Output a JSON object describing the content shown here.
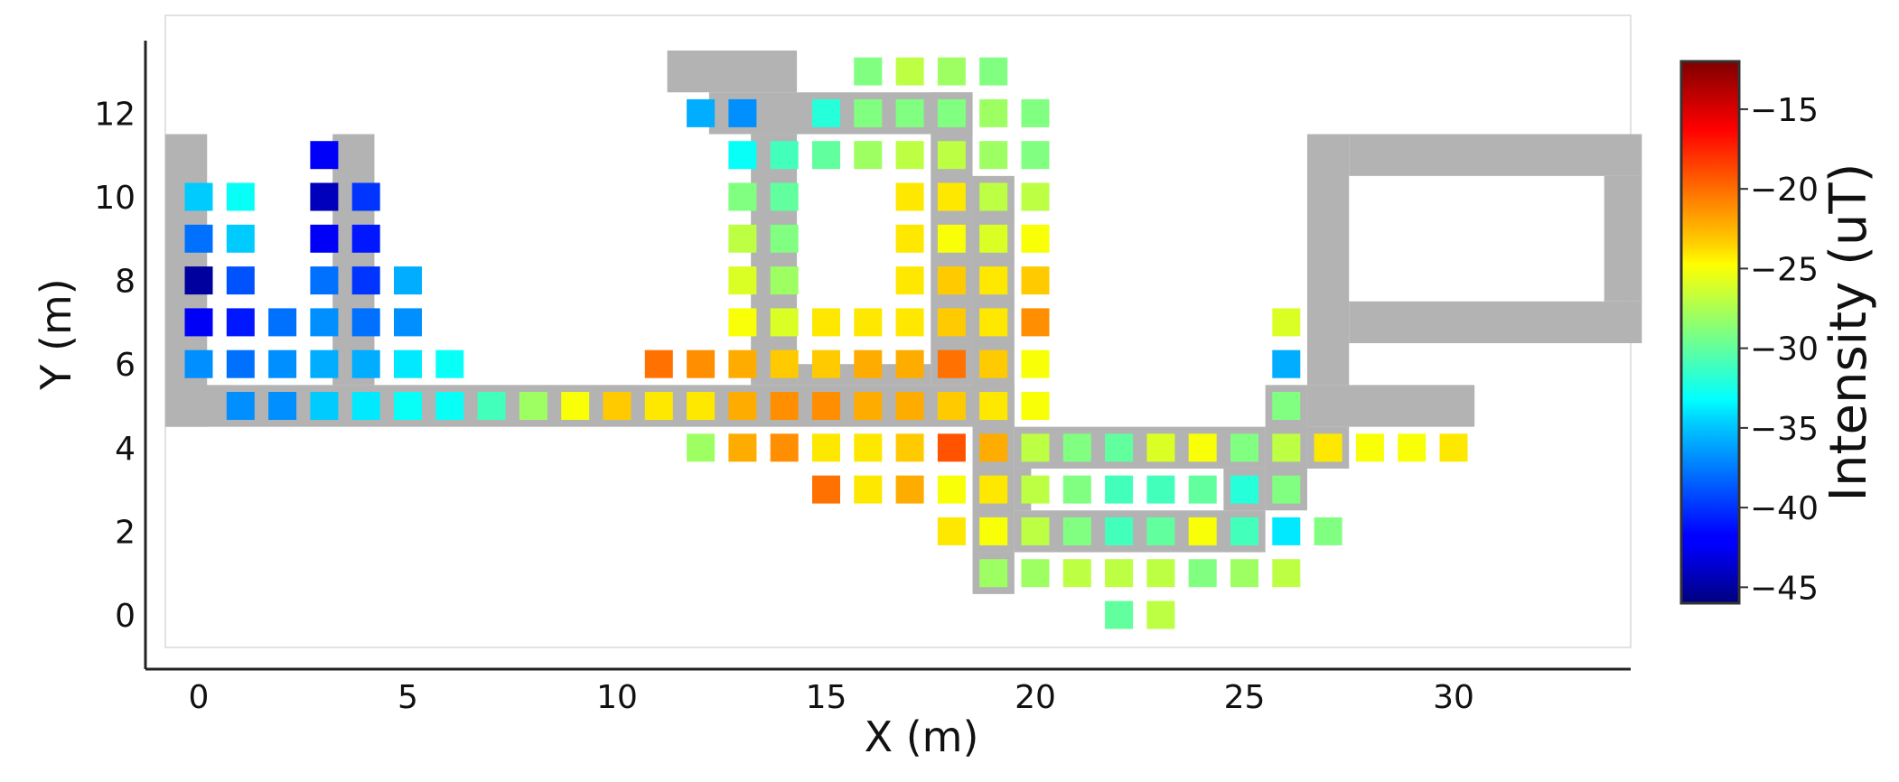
{
  "chart_data": {
    "type": "heatmap",
    "xlabel": "X (m)",
    "ylabel": "Y (m)",
    "xlim": [
      -1.3,
      34.5
    ],
    "ylim": [
      -1.3,
      14.5
    ],
    "xticks": [
      0,
      5,
      10,
      15,
      20,
      25,
      30
    ],
    "yticks": [
      0,
      2,
      4,
      6,
      8,
      10,
      12
    ],
    "grid": false,
    "colorbar": {
      "label": "Intensity (uT)",
      "colormap": "jet",
      "range": [
        -46,
        -12
      ],
      "ticks": [
        -45,
        -40,
        -35,
        -30,
        -25,
        -20,
        -15
      ]
    },
    "walls_color": "#b3b3b3",
    "walls": [
      [
        -0.8,
        4.5,
        19.5,
        5.5
      ],
      [
        -0.8,
        4.5,
        0.2,
        11.5
      ],
      [
        3.2,
        5.5,
        4.2,
        11.5
      ],
      [
        11.2,
        12.5,
        14.3,
        13.5
      ],
      [
        12.2,
        11.5,
        18.5,
        12.5
      ],
      [
        13.2,
        5.5,
        14.3,
        11.5
      ],
      [
        14.3,
        5.5,
        17.5,
        6.0
      ],
      [
        17.5,
        5.5,
        18.5,
        12.5
      ],
      [
        18.5,
        1.5,
        19.5,
        10.5
      ],
      [
        18.5,
        0.5,
        19.5,
        1.5
      ],
      [
        19.5,
        3.5,
        25.5,
        4.5
      ],
      [
        19.5,
        1.5,
        25.5,
        2.5
      ],
      [
        24.5,
        2.5,
        25.5,
        3.5
      ],
      [
        19.5,
        2.5,
        19.9,
        3.5
      ],
      [
        25.5,
        2.5,
        26.5,
        5.5
      ],
      [
        26.5,
        3.5,
        27.5,
        4.5
      ],
      [
        26.5,
        4.5,
        30.5,
        5.5
      ],
      [
        26.5,
        5.5,
        27.5,
        11.5
      ],
      [
        27.5,
        10.5,
        34.5,
        11.5
      ],
      [
        27.5,
        6.5,
        34.5,
        7.5
      ],
      [
        33.6,
        7.5,
        34.5,
        10.5
      ]
    ],
    "points": [
      [
        0,
        10,
        -35
      ],
      [
        0,
        9,
        -38
      ],
      [
        0,
        8,
        -45
      ],
      [
        0,
        7,
        -42
      ],
      [
        0,
        6,
        -37
      ],
      [
        1,
        10,
        -33
      ],
      [
        1,
        9,
        -35
      ],
      [
        1,
        8,
        -39
      ],
      [
        1,
        7,
        -41
      ],
      [
        1,
        6,
        -38
      ],
      [
        1,
        5,
        -37
      ],
      [
        2,
        7,
        -38
      ],
      [
        2,
        6,
        -37
      ],
      [
        2,
        5,
        -37
      ],
      [
        3,
        11,
        -42
      ],
      [
        3,
        10,
        -44
      ],
      [
        3,
        9,
        -42
      ],
      [
        3,
        8,
        -38
      ],
      [
        3,
        7,
        -37
      ],
      [
        3,
        6,
        -36
      ],
      [
        3,
        5,
        -35
      ],
      [
        4,
        10,
        -40
      ],
      [
        4,
        9,
        -41
      ],
      [
        4,
        8,
        -40
      ],
      [
        4,
        7,
        -38
      ],
      [
        4,
        6,
        -36
      ],
      [
        4,
        5,
        -34
      ],
      [
        5,
        8,
        -36
      ],
      [
        5,
        7,
        -37
      ],
      [
        5,
        6,
        -34
      ],
      [
        5,
        5,
        -33
      ],
      [
        6,
        6,
        -33
      ],
      [
        6,
        5,
        -33
      ],
      [
        7,
        5,
        -31
      ],
      [
        8,
        5,
        -28
      ],
      [
        9,
        5,
        -25
      ],
      [
        10,
        5,
        -23
      ],
      [
        11,
        6,
        -20
      ],
      [
        11,
        5,
        -24
      ],
      [
        12,
        12,
        -36
      ],
      [
        12,
        6,
        -21
      ],
      [
        12,
        5,
        -24
      ],
      [
        12,
        4,
        -28
      ],
      [
        13,
        12,
        -37
      ],
      [
        13,
        11,
        -33
      ],
      [
        13,
        10,
        -29
      ],
      [
        13,
        9,
        -27
      ],
      [
        13,
        8,
        -26
      ],
      [
        13,
        7,
        -25
      ],
      [
        13,
        6,
        -22
      ],
      [
        13,
        5,
        -22
      ],
      [
        13,
        4,
        -22
      ],
      [
        14,
        11,
        -31
      ],
      [
        14,
        10,
        -30
      ],
      [
        14,
        9,
        -29
      ],
      [
        14,
        8,
        -28
      ],
      [
        14,
        7,
        -26
      ],
      [
        14,
        6,
        -23
      ],
      [
        14,
        5,
        -21
      ],
      [
        14,
        4,
        -21
      ],
      [
        15,
        12,
        -32
      ],
      [
        15,
        11,
        -30
      ],
      [
        15,
        7,
        -24
      ],
      [
        15,
        6,
        -23
      ],
      [
        15,
        5,
        -21
      ],
      [
        15,
        4,
        -24
      ],
      [
        15,
        3,
        -20
      ],
      [
        16,
        13,
        -29
      ],
      [
        16,
        12,
        -29
      ],
      [
        16,
        11,
        -28
      ],
      [
        16,
        7,
        -24
      ],
      [
        16,
        6,
        -22
      ],
      [
        16,
        5,
        -22
      ],
      [
        16,
        4,
        -24
      ],
      [
        16,
        3,
        -24
      ],
      [
        17,
        13,
        -27
      ],
      [
        17,
        12,
        -29
      ],
      [
        17,
        11,
        -27
      ],
      [
        17,
        10,
        -24
      ],
      [
        17,
        9,
        -24
      ],
      [
        17,
        8,
        -24
      ],
      [
        17,
        7,
        -24
      ],
      [
        17,
        6,
        -22
      ],
      [
        17,
        5,
        -22
      ],
      [
        17,
        4,
        -23
      ],
      [
        17,
        3,
        -22
      ],
      [
        18,
        13,
        -28
      ],
      [
        18,
        12,
        -29
      ],
      [
        18,
        11,
        -27
      ],
      [
        18,
        10,
        -24
      ],
      [
        18,
        9,
        -25
      ],
      [
        18,
        8,
        -23
      ],
      [
        18,
        7,
        -23
      ],
      [
        18,
        6,
        -20
      ],
      [
        18,
        5,
        -23
      ],
      [
        18,
        4,
        -19
      ],
      [
        18,
        3,
        -25
      ],
      [
        18,
        2,
        -24
      ],
      [
        19,
        13,
        -29
      ],
      [
        19,
        12,
        -28
      ],
      [
        19,
        11,
        -28
      ],
      [
        19,
        10,
        -27
      ],
      [
        19,
        9,
        -26
      ],
      [
        19,
        8,
        -24
      ],
      [
        19,
        7,
        -24
      ],
      [
        19,
        6,
        -23
      ],
      [
        19,
        5,
        -24
      ],
      [
        19,
        4,
        -22
      ],
      [
        19,
        3,
        -24
      ],
      [
        19,
        2,
        -25
      ],
      [
        19,
        1,
        -28
      ],
      [
        20,
        12,
        -29
      ],
      [
        20,
        11,
        -29
      ],
      [
        20,
        10,
        -27
      ],
      [
        20,
        9,
        -25
      ],
      [
        20,
        8,
        -23
      ],
      [
        20,
        7,
        -21
      ],
      [
        20,
        6,
        -25
      ],
      [
        20,
        5,
        -25
      ],
      [
        20,
        4,
        -27
      ],
      [
        20,
        3,
        -27
      ],
      [
        20,
        2,
        -27
      ],
      [
        20,
        1,
        -28
      ],
      [
        21,
        4,
        -29
      ],
      [
        21,
        3,
        -29
      ],
      [
        21,
        2,
        -29
      ],
      [
        21,
        1,
        -27
      ],
      [
        22,
        4,
        -30
      ],
      [
        22,
        3,
        -31
      ],
      [
        22,
        2,
        -31
      ],
      [
        22,
        1,
        -27
      ],
      [
        22,
        0,
        -30
      ],
      [
        23,
        4,
        -26
      ],
      [
        23,
        3,
        -31
      ],
      [
        23,
        2,
        -30
      ],
      [
        23,
        1,
        -27
      ],
      [
        23,
        0,
        -27
      ],
      [
        24,
        4,
        -25
      ],
      [
        24,
        3,
        -30
      ],
      [
        24,
        2,
        -25
      ],
      [
        24,
        1,
        -29
      ],
      [
        25,
        4,
        -29
      ],
      [
        25,
        3,
        -32
      ],
      [
        25,
        2,
        -31
      ],
      [
        25,
        1,
        -28
      ],
      [
        26,
        7,
        -26
      ],
      [
        26,
        6,
        -36
      ],
      [
        26,
        5,
        -29
      ],
      [
        26,
        4,
        -27
      ],
      [
        26,
        3,
        -29
      ],
      [
        26,
        2,
        -34
      ],
      [
        26,
        1,
        -27
      ],
      [
        27,
        4,
        -24
      ],
      [
        27,
        2,
        -29
      ],
      [
        28,
        4,
        -25
      ],
      [
        29,
        4,
        -25
      ],
      [
        30,
        4,
        -24
      ]
    ]
  }
}
